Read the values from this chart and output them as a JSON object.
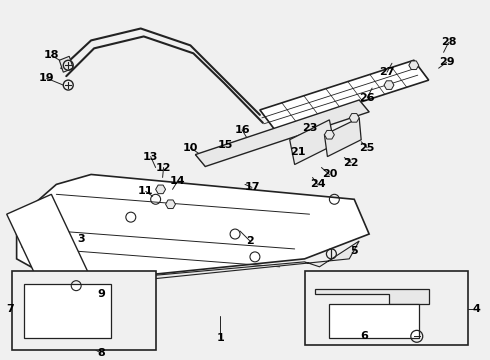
{
  "bg_color": "#f0f0f0",
  "line_color": "#222222",
  "label_color": "#000000",
  "fig_w": 4.9,
  "fig_h": 3.6,
  "dpi": 100
}
